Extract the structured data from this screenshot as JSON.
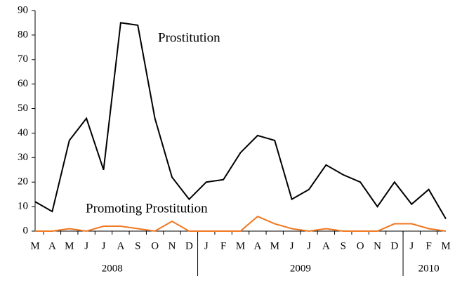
{
  "chart_data": {
    "type": "line",
    "category_groups": [
      {
        "label": "2008",
        "categories": [
          "M",
          "A",
          "M",
          "J",
          "J",
          "A",
          "S",
          "O",
          "N",
          "D"
        ]
      },
      {
        "label": "2009",
        "categories": [
          "J",
          "F",
          "M",
          "A",
          "M",
          "J",
          "J",
          "A",
          "S",
          "O",
          "N",
          "D"
        ]
      },
      {
        "label": "2010",
        "categories": [
          "J",
          "F",
          "M"
        ]
      }
    ],
    "series": [
      {
        "name": "Prostitution",
        "color": "#000000",
        "values": [
          12,
          8,
          37,
          46,
          25,
          85,
          84,
          46,
          22,
          13,
          20,
          21,
          32,
          39,
          37,
          13,
          17,
          27,
          23,
          20,
          10,
          20,
          11,
          17,
          5
        ]
      },
      {
        "name": "Promoting Prostitution",
        "color": "#f07820",
        "values": [
          0,
          0,
          1,
          0,
          2,
          2,
          1,
          0,
          4,
          0,
          0,
          0,
          0,
          6,
          3,
          1,
          0,
          1,
          0,
          0,
          0,
          3,
          3,
          1,
          0
        ]
      }
    ],
    "ylim": [
      0,
      90
    ],
    "yticks": [
      0,
      10,
      20,
      30,
      40,
      50,
      60,
      70,
      80,
      90
    ],
    "grid": false
  }
}
